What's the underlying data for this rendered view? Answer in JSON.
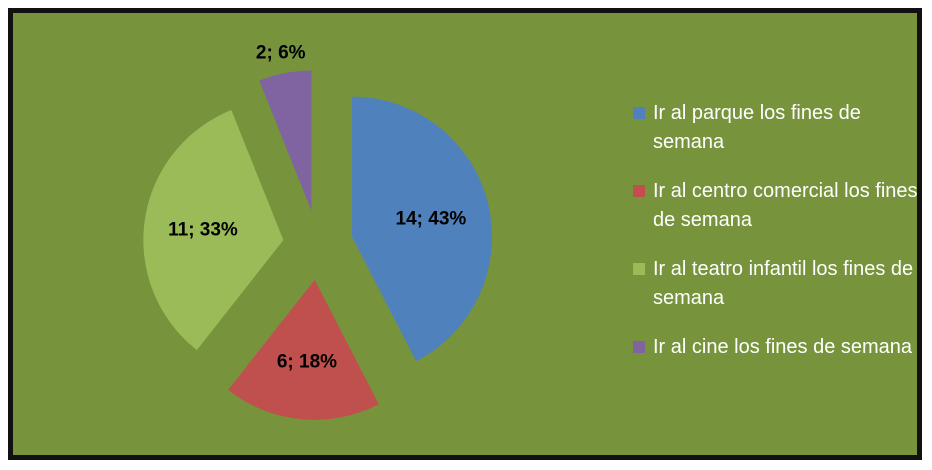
{
  "chart_data": {
    "type": "pie",
    "slices": [
      {
        "label": "Ir al parque los fines de semana",
        "value": 14,
        "percent": 43,
        "data_label": "14; 43%",
        "color": "#4f81bd"
      },
      {
        "label": "Ir al centro comercial los fines de semana",
        "value": 6,
        "percent": 18,
        "data_label": "6; 18%",
        "color": "#c0504d"
      },
      {
        "label": "Ir al teatro infantil los fines de semana",
        "value": 11,
        "percent": 33,
        "data_label": "11; 33%",
        "color": "#9bbb59"
      },
      {
        "label": "Ir al cine los fines de semana",
        "value": 2,
        "percent": 6,
        "data_label": "2; 6%",
        "color": "#8064a2"
      }
    ],
    "exploded": true,
    "legend": "right"
  },
  "colors": {
    "background": "#77933c",
    "border": "#111111",
    "legend_text": "#ffffff"
  }
}
